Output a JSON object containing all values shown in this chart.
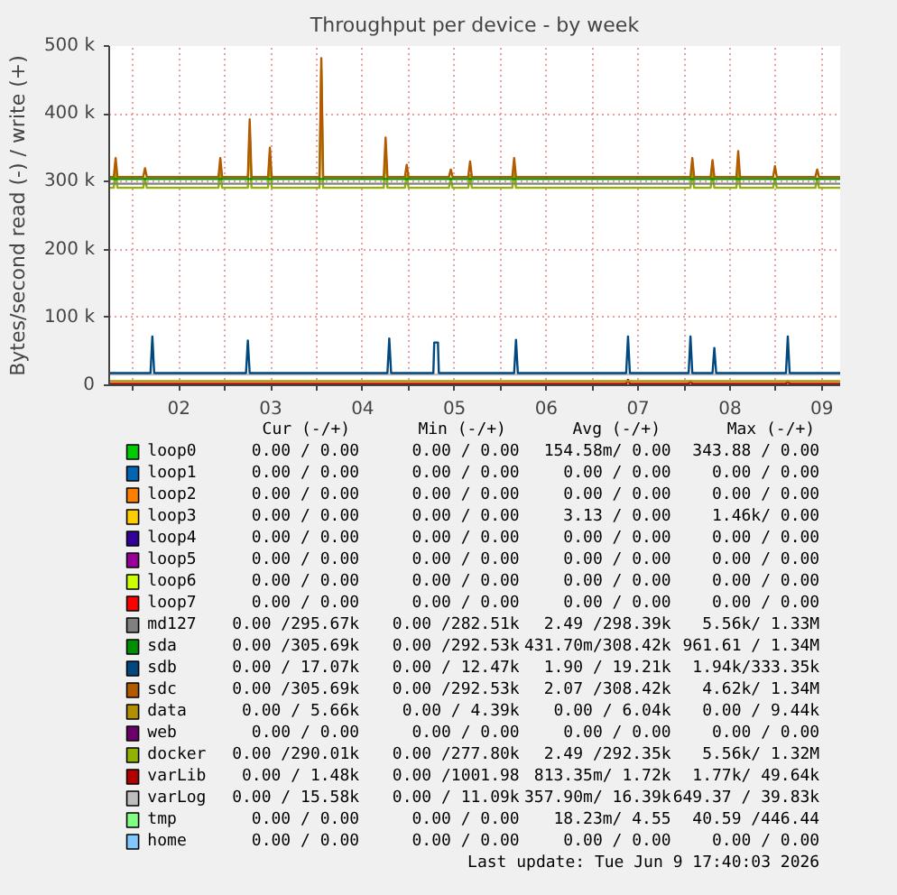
{
  "chart_data": {
    "type": "line",
    "title": "Throughput per device - by week",
    "ylabel": "Bytes/second read (-) / write (+)",
    "xlim": [
      1.24,
      9.2
    ],
    "ylim": [
      0,
      500000
    ],
    "xticks": [
      {
        "value": 1.5,
        "label": null
      },
      {
        "value": 2,
        "label": "02"
      },
      {
        "value": 2.5,
        "label": null
      },
      {
        "value": 3,
        "label": "03"
      },
      {
        "value": 3.5,
        "label": null
      },
      {
        "value": 4,
        "label": "04"
      },
      {
        "value": 4.5,
        "label": null
      },
      {
        "value": 5,
        "label": "05"
      },
      {
        "value": 5.5,
        "label": null
      },
      {
        "value": 6,
        "label": "06"
      },
      {
        "value": 6.5,
        "label": null
      },
      {
        "value": 7,
        "label": "07"
      },
      {
        "value": 7.5,
        "label": null
      },
      {
        "value": 8,
        "label": "08"
      },
      {
        "value": 8.5,
        "label": null
      },
      {
        "value": 9,
        "label": "09"
      }
    ],
    "yticks": [
      {
        "value": 0,
        "label": "0"
      },
      {
        "value": 100000,
        "label": "100 k"
      },
      {
        "value": 200000,
        "label": "200 k"
      },
      {
        "value": 300000,
        "label": "300 k"
      },
      {
        "value": 400000,
        "label": "400 k"
      },
      {
        "value": 500000,
        "label": "500 k"
      }
    ],
    "grid": true,
    "legend": "bottom",
    "marker": "none",
    "line_style": "solid",
    "series": [
      {
        "name": "loop0",
        "color": "#00cc00"
      },
      {
        "name": "loop1",
        "color": "#0066b3"
      },
      {
        "name": "loop2",
        "color": "#ff8000"
      },
      {
        "name": "loop3",
        "color": "#ffcc00"
      },
      {
        "name": "loop4",
        "color": "#330099"
      },
      {
        "name": "loop5",
        "color": "#990099"
      },
      {
        "name": "loop6",
        "color": "#ccff00"
      },
      {
        "name": "loop7",
        "color": "#ff0000"
      },
      {
        "name": "md127",
        "color": "#808080",
        "x": [
          1.24,
          9.2
        ],
        "values": [
          297000,
          297000
        ]
      },
      {
        "name": "sda",
        "color": "#008f00",
        "x": [
          1.24,
          9.2
        ],
        "values": [
          304000,
          304000
        ]
      },
      {
        "name": "sdb",
        "color": "#00487d",
        "x": [
          1.24,
          1.69,
          1.71,
          1.73,
          2.73,
          2.75,
          2.77,
          4.27,
          4.29,
          4.31,
          4.77,
          4.78,
          4.82,
          4.83,
          5.65,
          5.67,
          5.69,
          6.87,
          6.89,
          6.91,
          7.55,
          7.57,
          7.59,
          7.81,
          7.83,
          7.85,
          8.61,
          8.63,
          8.65,
          9.2
        ],
        "values": [
          18000,
          18000,
          72000,
          18000,
          18000,
          66000,
          18000,
          18000,
          69000,
          18000,
          18000,
          63000,
          63000,
          18000,
          18000,
          67000,
          18000,
          18000,
          72000,
          18000,
          18000,
          72000,
          18000,
          18000,
          55000,
          18000,
          18000,
          72000,
          18000,
          18000
        ]
      },
      {
        "name": "sdc",
        "color": "#b35a00",
        "x": [
          1.24,
          1.29,
          1.31,
          1.33,
          1.61,
          1.63,
          1.65,
          2.43,
          2.45,
          2.47,
          2.75,
          2.77,
          2.79,
          2.97,
          2.99,
          3.01,
          3.53,
          3.55,
          3.57,
          4.23,
          4.25,
          4.27,
          4.46,
          4.48,
          4.5,
          4.94,
          4.96,
          4.98,
          5.15,
          5.17,
          5.19,
          5.63,
          5.65,
          5.67,
          7.57,
          7.59,
          7.61,
          7.79,
          7.81,
          7.83,
          8.07,
          8.09,
          8.11,
          8.47,
          8.49,
          8.51,
          8.93,
          8.95,
          8.97,
          9.2
        ],
        "values": [
          307000,
          307000,
          335000,
          307000,
          307000,
          320000,
          307000,
          307000,
          335000,
          307000,
          307000,
          392000,
          307000,
          307000,
          350000,
          307000,
          307000,
          482000,
          307000,
          307000,
          365000,
          307000,
          307000,
          325000,
          307000,
          307000,
          318000,
          307000,
          307000,
          330000,
          307000,
          307000,
          335000,
          307000,
          307000,
          335000,
          307000,
          307000,
          332000,
          307000,
          307000,
          345000,
          307000,
          307000,
          323000,
          307000,
          307000,
          318000,
          307000,
          307000
        ]
      },
      {
        "name": "data",
        "color": "#b38f00",
        "x": [
          1.24,
          9.2
        ],
        "values": [
          6000,
          6000
        ]
      },
      {
        "name": "web",
        "color": "#6b006b"
      },
      {
        "name": "docker",
        "color": "#8fb300",
        "x": [
          1.24,
          1.29,
          1.31,
          1.33,
          1.61,
          1.63,
          1.65,
          2.43,
          2.45,
          2.47,
          2.75,
          2.77,
          2.79,
          2.97,
          2.99,
          3.01,
          3.53,
          3.55,
          3.57,
          4.23,
          4.25,
          4.27,
          4.46,
          4.48,
          4.5,
          4.94,
          4.96,
          4.98,
          5.15,
          5.17,
          5.19,
          5.63,
          5.65,
          5.67,
          7.57,
          7.59,
          7.61,
          7.79,
          7.81,
          7.83,
          8.07,
          8.09,
          8.11,
          8.47,
          8.49,
          8.51,
          8.93,
          8.95,
          8.97,
          9.2
        ],
        "values": [
          291000,
          291000,
          318000,
          291000,
          291000,
          305000,
          291000,
          291000,
          318000,
          291000,
          291000,
          375000,
          291000,
          291000,
          335000,
          291000,
          291000,
          465000,
          291000,
          291000,
          348000,
          291000,
          291000,
          310000,
          291000,
          291000,
          305000,
          291000,
          291000,
          310000,
          291000,
          291000,
          318000,
          291000,
          291000,
          318000,
          291000,
          291000,
          315000,
          291000,
          291000,
          332000,
          291000,
          291000,
          305000,
          291000,
          291000,
          305000,
          291000,
          291000
        ]
      },
      {
        "name": "varLib",
        "color": "#b30000",
        "x": [
          1.24,
          6.87,
          6.89,
          6.91,
          7.55,
          7.57,
          7.59,
          8.61,
          8.63,
          8.65,
          9.2
        ],
        "values": [
          2000,
          2000,
          8000,
          2000,
          2000,
          6000,
          2000,
          2000,
          6000,
          2000,
          2000
        ]
      },
      {
        "name": "varLog",
        "color": "#bebebe",
        "x": [
          1.24,
          9.2
        ],
        "values": [
          16000,
          16000
        ]
      },
      {
        "name": "tmp",
        "color": "#80ff80"
      },
      {
        "name": "home",
        "color": "#80c9ff"
      }
    ],
    "annotations": [
      "Cur (-/+)",
      "Min (-/+)",
      "Avg (-/+)",
      "Max (-/+)",
      "0.00 / 0.00",
      "0.00 / 0.00",
      "154.58m/ 0.00",
      "343.88 / 0.00",
      "0.00 / 0.00",
      "0.00 / 0.00",
      "0.00 / 0.00",
      "0.00 / 0.00",
      "0.00 / 0.00",
      "0.00 / 0.00",
      "0.00 / 0.00",
      "0.00 / 0.00",
      "0.00 / 0.00",
      "0.00 / 0.00",
      "3.13 / 0.00",
      "1.46k/ 0.00",
      "0.00 / 0.00",
      "0.00 / 0.00",
      "0.00 / 0.00",
      "0.00 / 0.00",
      "0.00 / 0.00",
      "0.00 / 0.00",
      "0.00 / 0.00",
      "0.00 / 0.00",
      "0.00 / 0.00",
      "0.00 / 0.00",
      "0.00 / 0.00",
      "0.00 / 0.00",
      "0.00 / 0.00",
      "0.00 / 0.00",
      "0.00 / 0.00",
      "0.00 / 0.00",
      "0.00 /295.67k",
      "0.00 /282.51k",
      "2.49 /298.39k",
      "5.56k/ 1.33M",
      "0.00 /305.69k",
      "0.00 /292.53k",
      "431.70m/308.42k",
      "961.61 / 1.34M",
      "0.00 / 17.07k",
      "0.00 / 12.47k",
      "1.90 / 19.21k",
      "1.94k/333.35k",
      "0.00 /305.69k",
      "0.00 /292.53k",
      "2.07 /308.42k",
      "4.62k/ 1.34M",
      "0.00 / 5.66k",
      "0.00 / 4.39k",
      "0.00 / 6.04k",
      "0.00 / 9.44k",
      "0.00 / 0.00",
      "0.00 / 0.00",
      "0.00 / 0.00",
      "0.00 / 0.00",
      "0.00 /290.01k",
      "0.00 /277.80k",
      "2.49 /292.35k",
      "5.56k/ 1.32M",
      "0.00 / 1.48k",
      "0.00 /1001.98",
      "813.35m/ 1.72k",
      "1.77k/ 49.64k",
      "0.00 / 15.58k",
      "0.00 / 11.09k",
      "357.90m/ 16.39k",
      "649.37 / 39.83k",
      "0.00 / 0.00",
      "0.00 / 0.00",
      "18.23m/ 4.55",
      "40.59 /446.44",
      "0.00 / 0.00",
      "0.00 / 0.00",
      "0.00 / 0.00",
      "0.00 / 0.00",
      "Last update: Tue Jun 9 17:40:03 2026"
    ]
  }
}
